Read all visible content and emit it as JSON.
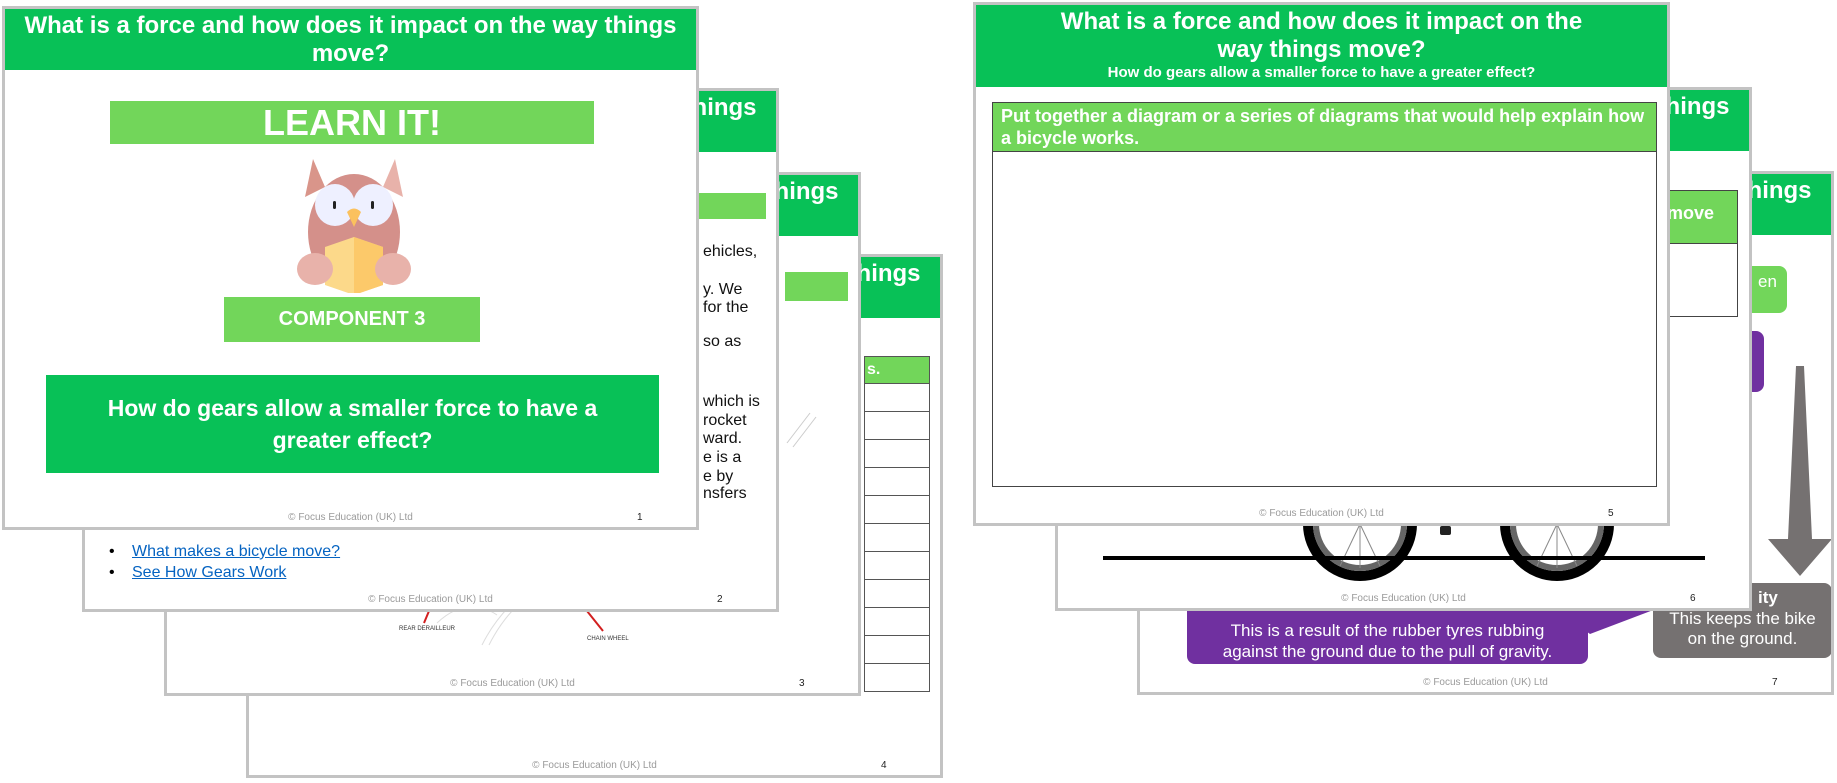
{
  "deck_title": "What is a force and how does it impact on the way things move?",
  "footer": "© Focus Education (UK) Ltd",
  "colors": {
    "green": "#08c157",
    "light_green": "#72d65a",
    "purple": "#7030a0",
    "grey": "#757171",
    "link": "#0563c1"
  },
  "slide1": {
    "number": "1",
    "learn_label": "LEARN IT!",
    "mascot_icon": "owl-reading-book-icon",
    "component_label": "COMPONENT 3",
    "question": "How do gears allow a smaller force to have a greater effect?"
  },
  "slide2": {
    "number": "2",
    "text_fragments": [
      "ehicles,",
      "y. We",
      "for the",
      "so as",
      "which is",
      "rocket",
      "ward.",
      "e is a",
      "e by",
      "nsfers"
    ],
    "links": [
      "What makes a bicycle move?",
      "See How Gears Work"
    ]
  },
  "slide3": {
    "number": "3",
    "diagram_labels": [
      "REAR DERAILLEUR",
      "CHAIN WHEEL"
    ]
  },
  "slide4": {
    "number": "4",
    "table_header_fragment": "s."
  },
  "slide5": {
    "number": "5",
    "subtitle": "How do gears allow a smaller force to have a greater effect?",
    "task": "Put together a diagram or a series of diagrams that would help explain how a bicycle works."
  },
  "slide6": {
    "number": "6",
    "box_fragment": "move"
  },
  "slide7": {
    "number": "7",
    "green_fragment": "en",
    "gravity_title_fragment": "ity",
    "gravity_text": "This keeps the bike on the ground.",
    "friction_text": "This is a result of the rubber tyres rubbing against the ground due to the pull of gravity."
  }
}
